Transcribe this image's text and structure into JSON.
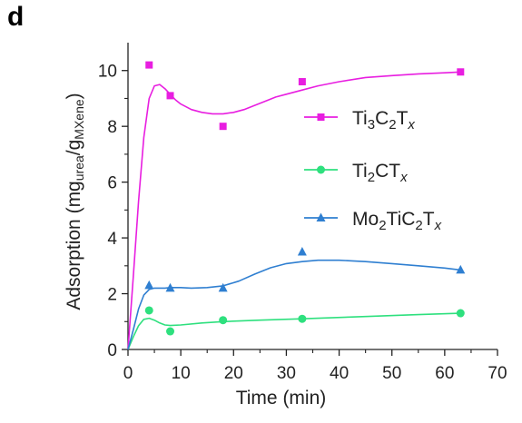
{
  "panel_label": "d",
  "chart_data": {
    "type": "scatter",
    "title": "",
    "xlabel": "Time (min)",
    "ylabel": "Adsorption (mg_urea/g_MXene)",
    "ylabel_parts": {
      "main": "Adsorption (mg",
      "sub1": "urea",
      "mid": "/g",
      "sub2": "MXene",
      "end": ")"
    },
    "xlim": [
      0,
      70
    ],
    "ylim": [
      0,
      11
    ],
    "xticks": [
      0,
      10,
      20,
      30,
      40,
      50,
      60,
      70
    ],
    "yticks": [
      0,
      2,
      4,
      6,
      8,
      10
    ],
    "grid": false,
    "legend_position": "center-right",
    "series": [
      {
        "name": "Ti3C2Tx",
        "name_parts": [
          [
            "Ti",
            ""
          ],
          [
            "3",
            "sub"
          ],
          [
            "C",
            ""
          ],
          [
            "2",
            "sub"
          ],
          [
            "T",
            ""
          ],
          [
            "x",
            "subi"
          ]
        ],
        "color": "#e81ee0",
        "marker": "square",
        "x": [
          4,
          8,
          18,
          33,
          63
        ],
        "y": [
          10.2,
          9.1,
          8.0,
          9.6,
          9.95
        ],
        "curve_x": [
          0,
          1,
          2,
          3,
          4,
          5,
          6,
          7,
          8,
          9,
          10,
          12,
          14,
          16,
          18,
          20,
          22,
          24,
          26,
          28,
          30,
          33,
          36,
          40,
          45,
          50,
          55,
          60,
          63
        ],
        "curve_y": [
          0,
          2.6,
          5.3,
          7.6,
          9.0,
          9.45,
          9.5,
          9.35,
          9.15,
          8.95,
          8.8,
          8.6,
          8.5,
          8.45,
          8.45,
          8.5,
          8.6,
          8.75,
          8.9,
          9.05,
          9.15,
          9.3,
          9.45,
          9.6,
          9.75,
          9.82,
          9.88,
          9.92,
          9.95
        ]
      },
      {
        "name": "Ti2CTx",
        "name_parts": [
          [
            "Ti",
            ""
          ],
          [
            "2",
            "sub"
          ],
          [
            "CT",
            ""
          ],
          [
            "x",
            "subi"
          ]
        ],
        "color": "#2ee07e",
        "marker": "circle",
        "x": [
          4,
          8,
          18,
          33,
          63
        ],
        "y": [
          1.4,
          0.65,
          1.05,
          1.1,
          1.3
        ],
        "curve_x": [
          0,
          1,
          2,
          3,
          4,
          5,
          6,
          7,
          8,
          10,
          14,
          18,
          25,
          33,
          45,
          55,
          63
        ],
        "curve_y": [
          0,
          0.45,
          0.85,
          1.08,
          1.12,
          1.05,
          0.95,
          0.88,
          0.86,
          0.88,
          0.95,
          1.0,
          1.05,
          1.1,
          1.18,
          1.25,
          1.3
        ]
      },
      {
        "name": "Mo2TiC2Tx",
        "name_parts": [
          [
            "Mo",
            ""
          ],
          [
            "2",
            "sub"
          ],
          [
            "TiC",
            ""
          ],
          [
            "2",
            "sub"
          ],
          [
            "T",
            ""
          ],
          [
            "x",
            "subi"
          ]
        ],
        "color": "#2f7fd1",
        "marker": "triangle",
        "x": [
          4,
          8,
          18,
          33,
          63
        ],
        "y": [
          2.3,
          2.2,
          2.2,
          3.5,
          2.85
        ],
        "curve_x": [
          0,
          1,
          2,
          3,
          4,
          5,
          6,
          7,
          8,
          10,
          12,
          15,
          18,
          21,
          24,
          27,
          30,
          33,
          36,
          40,
          45,
          50,
          55,
          60,
          63
        ],
        "curve_y": [
          0,
          0.7,
          1.45,
          1.95,
          2.15,
          2.2,
          2.2,
          2.2,
          2.22,
          2.22,
          2.2,
          2.22,
          2.28,
          2.45,
          2.7,
          2.93,
          3.08,
          3.15,
          3.2,
          3.2,
          3.15,
          3.08,
          3.0,
          2.92,
          2.85
        ]
      }
    ]
  }
}
